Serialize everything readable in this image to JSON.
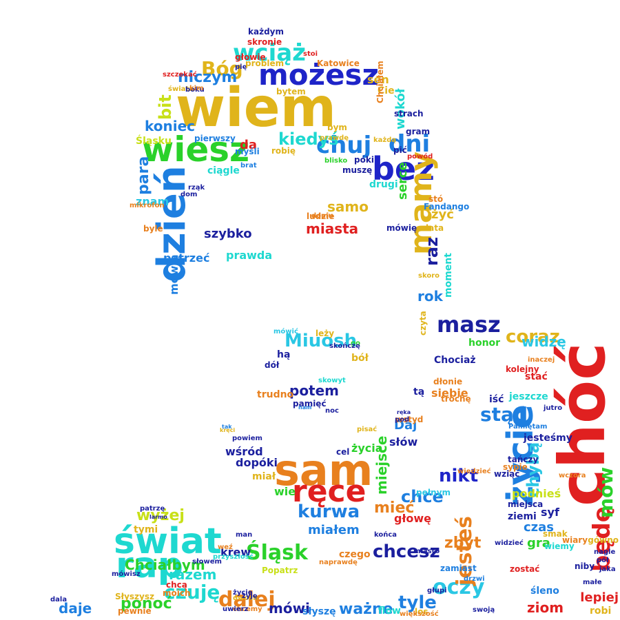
{
  "palette": {
    "gold": "#e0b41b",
    "blue": "#1e24c8",
    "navy": "#1b1f9e",
    "teal": "#1ed8d0",
    "cyan": "#2ac7e4",
    "green": "#2ad12a",
    "lime": "#c8e018",
    "orange": "#e8801e",
    "red": "#e02020",
    "azure": "#1e7fe0"
  },
  "words": [
    {
      "text": "wiem",
      "color": "gold"
    },
    {
      "text": "sam",
      "color": "orange"
    },
    {
      "text": "chóć",
      "color": "red"
    },
    {
      "text": "życie",
      "color": "azure"
    },
    {
      "text": "dzień",
      "color": "azure"
    },
    {
      "text": "wiesz",
      "color": "green"
    },
    {
      "text": "możesz",
      "color": "blue"
    },
    {
      "text": "bez",
      "color": "blue"
    },
    {
      "text": "świat",
      "color": "teal"
    },
    {
      "text": "rap",
      "color": "teal"
    },
    {
      "text": "ręce",
      "color": "red"
    },
    {
      "text": "wciąż",
      "color": "teal"
    },
    {
      "text": "dni",
      "color": "azure"
    },
    {
      "text": "chuj",
      "color": "azure"
    },
    {
      "text": "mamy",
      "color": "gold"
    },
    {
      "text": "masz",
      "color": "navy"
    },
    {
      "text": "oczy",
      "color": "cyan"
    },
    {
      "text": "jesteś",
      "color": "orange"
    },
    {
      "text": "chcesz",
      "color": "navy"
    },
    {
      "text": "kurwa",
      "color": "azure"
    },
    {
      "text": "nikt",
      "color": "blue"
    },
    {
      "text": "Miuosh",
      "color": "cyan"
    },
    {
      "text": "czuję",
      "color": "teal"
    },
    {
      "text": "Śląsk",
      "color": "green"
    },
    {
      "text": "Bóg",
      "color": "gold"
    },
    {
      "text": "dalej",
      "color": "orange"
    },
    {
      "text": "chce",
      "color": "azure"
    },
    {
      "text": "stąd",
      "color": "azure"
    },
    {
      "text": "coraz",
      "color": "gold"
    },
    {
      "text": "będę",
      "color": "red"
    },
    {
      "text": "mów",
      "color": "green"
    },
    {
      "text": "chybą",
      "color": "cyan"
    },
    {
      "text": "niczym",
      "color": "azure"
    },
    {
      "text": "koniec",
      "color": "azure"
    },
    {
      "text": "bit",
      "color": "lime"
    },
    {
      "text": "kiedyś",
      "color": "teal"
    },
    {
      "text": "miasta",
      "color": "red"
    },
    {
      "text": "raz",
      "color": "navy"
    },
    {
      "text": "tyle",
      "color": "azure"
    },
    {
      "text": "ważne",
      "color": "azure"
    },
    {
      "text": "mówi",
      "color": "navy"
    },
    {
      "text": "Chciałbym",
      "color": "green"
    },
    {
      "text": "razem",
      "color": "teal"
    },
    {
      "text": "wyżej",
      "color": "lime"
    },
    {
      "text": "ponoć",
      "color": "green"
    },
    {
      "text": "potem",
      "color": "navy"
    },
    {
      "text": "samo",
      "color": "gold"
    },
    {
      "text": "prawda",
      "color": "teal"
    },
    {
      "text": "szybko",
      "color": "navy"
    },
    {
      "text": "miejsce",
      "color": "green"
    },
    {
      "text": "mieć",
      "color": "orange"
    },
    {
      "text": "ziom",
      "color": "red"
    },
    {
      "text": "zbyt",
      "color": "orange"
    },
    {
      "text": "widzę",
      "color": "cyan"
    },
    {
      "text": "rok",
      "color": "azure"
    },
    {
      "text": "gra",
      "color": "green"
    },
    {
      "text": "lepiej",
      "color": "red"
    },
    {
      "text": "daje",
      "color": "azure"
    },
    {
      "text": "krew",
      "color": "navy"
    },
    {
      "text": "da",
      "color": "red"
    },
    {
      "text": "wokół",
      "color": "teal"
    },
    {
      "text": "serce",
      "color": "green"
    },
    {
      "text": "żyć",
      "color": "gold"
    },
    {
      "text": "para",
      "color": "azure"
    },
    {
      "text": "znam",
      "color": "cyan"
    },
    {
      "text": "patrzeć",
      "color": "azure"
    },
    {
      "text": "mówią",
      "color": "azure"
    },
    {
      "text": "Daj",
      "color": "azure"
    },
    {
      "text": "życia",
      "color": "green"
    },
    {
      "text": "słów",
      "color": "navy"
    },
    {
      "text": "moment",
      "color": "teal"
    },
    {
      "text": "Chociaż",
      "color": "navy"
    },
    {
      "text": "honor",
      "color": "green"
    },
    {
      "text": "wśród",
      "color": "navy"
    },
    {
      "text": "dopóki",
      "color": "navy"
    },
    {
      "text": "miał",
      "color": "gold"
    },
    {
      "text": "wie",
      "color": "green"
    },
    {
      "text": "miałem",
      "color": "azure"
    },
    {
      "text": "głowę",
      "color": "red"
    },
    {
      "text": "jeszcze",
      "color": "teal"
    },
    {
      "text": "pełnym",
      "color": "cyan"
    },
    {
      "text": "czas",
      "color": "azure"
    },
    {
      "text": "syf",
      "color": "navy"
    },
    {
      "text": "ziemi",
      "color": "navy"
    },
    {
      "text": "tymi",
      "color": "gold"
    },
    {
      "text": "podnieś",
      "color": "lime"
    },
    {
      "text": "wczora",
      "color": "orange"
    },
    {
      "text": "jesteśmy",
      "color": "navy"
    },
    {
      "text": "flow",
      "color": "teal"
    },
    {
      "text": "robi",
      "color": "gold"
    },
    {
      "text": "stać",
      "color": "red"
    },
    {
      "text": "siebie",
      "color": "orange"
    },
    {
      "text": "cel",
      "color": "navy"
    },
    {
      "text": "ciągle",
      "color": "teal"
    },
    {
      "text": "dom",
      "color": "navy"
    },
    {
      "text": "sen",
      "color": "gold"
    },
    {
      "text": "Cie",
      "color": "gold"
    },
    {
      "text": "pierwszy",
      "color": "azure"
    },
    {
      "text": "Śląsku",
      "color": "lime"
    },
    {
      "text": "kolejny",
      "color": "red"
    },
    {
      "text": "czego",
      "color": "orange"
    },
    {
      "text": "naprawdę",
      "color": "orange"
    },
    {
      "text": "trudno",
      "color": "orange"
    },
    {
      "text": "pamięć",
      "color": "navy"
    },
    {
      "text": "skowyt",
      "color": "teal"
    },
    {
      "text": "dół",
      "color": "navy"
    },
    {
      "text": "bół",
      "color": "gold"
    },
    {
      "text": "tą",
      "color": "navy"
    },
    {
      "text": "iść",
      "color": "navy"
    },
    {
      "text": "ludzie",
      "color": "orange"
    },
    {
      "text": "domu",
      "color": "orange"
    },
    {
      "text": "każdym",
      "color": "navy"
    },
    {
      "text": "pię",
      "color": "navy"
    },
    {
      "text": "głowie",
      "color": "red"
    },
    {
      "text": "problem",
      "color": "gold"
    },
    {
      "text": "Katowice",
      "color": "orange"
    },
    {
      "text": "bym",
      "color": "gold"
    },
    {
      "text": "pić",
      "color": "navy"
    },
    {
      "text": "póki",
      "color": "navy"
    },
    {
      "text": "muszę",
      "color": "navy"
    },
    {
      "text": "drugi",
      "color": "teal"
    },
    {
      "text": "mówię",
      "color": "navy"
    },
    {
      "text": "stó",
      "color": "orange"
    },
    {
      "text": "lata",
      "color": "gold"
    },
    {
      "text": "Słyszysz",
      "color": "gold"
    },
    {
      "text": "pewnie",
      "color": "orange"
    },
    {
      "text": "moich",
      "color": "orange"
    },
    {
      "text": "chcą",
      "color": "red"
    },
    {
      "text": "słyszę",
      "color": "azure"
    },
    {
      "text": "los",
      "color": "gold"
    },
    {
      "text": "swoją",
      "color": "navy"
    },
    {
      "text": "Pamiętam",
      "color": "azure"
    },
    {
      "text": "tańczy",
      "color": "navy"
    },
    {
      "text": "sypie",
      "color": "orange"
    },
    {
      "text": "śleпо",
      "color": "azure"
    },
    {
      "text": "miejsca",
      "color": "navy"
    },
    {
      "text": "wziąć",
      "color": "navy"
    },
    {
      "text": "trochę",
      "color": "orange"
    },
    {
      "text": "dłonie",
      "color": "orange"
    },
    {
      "text": "wstyd",
      "color": "orange"
    },
    {
      "text": "czyta",
      "color": "gold"
    },
    {
      "text": "pod",
      "color": "navy"
    },
    {
      "text": "ręka",
      "color": "navy"
    },
    {
      "text": "rząk",
      "color": "navy"
    },
    {
      "text": "mikrofon",
      "color": "orange"
    },
    {
      "text": "byle",
      "color": "orange"
    },
    {
      "text": "brat",
      "color": "azure"
    },
    {
      "text": "myśli",
      "color": "azure"
    },
    {
      "text": "robię",
      "color": "gold"
    },
    {
      "text": "blisko",
      "color": "green"
    },
    {
      "text": "prawdę",
      "color": "gold"
    },
    {
      "text": "każdą",
      "color": "gold"
    },
    {
      "text": "strach",
      "color": "navy"
    },
    {
      "text": "gram",
      "color": "navy"
    },
    {
      "text": "powód",
      "color": "red"
    },
    {
      "text": "Fandango",
      "color": "azure"
    },
    {
      "text": "skronie",
      "color": "red"
    },
    {
      "text": "stoi",
      "color": "red"
    },
    {
      "text": "bytem",
      "color": "gold"
    },
    {
      "text": "szczekać",
      "color": "red"
    },
    {
      "text": "świata",
      "color": "gold"
    },
    {
      "text": "boku",
      "color": "navy"
    },
    {
      "text": "kim",
      "color": "orange"
    },
    {
      "text": "Chciałem",
      "color": "orange"
    },
    {
      "text": "mówić",
      "color": "cyan"
    },
    {
      "text": "leży",
      "color": "gold"
    },
    {
      "text": "hą",
      "color": "navy"
    },
    {
      "text": "go",
      "color": "green"
    },
    {
      "text": "skoro",
      "color": "gold"
    },
    {
      "text": "smak",
      "color": "gold"
    },
    {
      "text": "wiary",
      "color": "orange"
    },
    {
      "text": "wiemy",
      "color": "teal"
    },
    {
      "text": "niby",
      "color": "navy"
    },
    {
      "text": "pół",
      "color": "navy"
    },
    {
      "text": "małe",
      "color": "navy"
    },
    {
      "text": "życie",
      "color": "navy"
    },
    {
      "text": "dwóch",
      "color": "gold"
    },
    {
      "text": "chcemy",
      "color": "orange"
    },
    {
      "text": "Popatrz",
      "color": "lime"
    },
    {
      "text": "większość",
      "color": "orange"
    },
    {
      "text": "dala",
      "color": "navy"
    },
    {
      "text": "końca",
      "color": "navy"
    },
    {
      "text": "miasto",
      "color": "navy"
    },
    {
      "text": "widzieć",
      "color": "navy"
    },
    {
      "text": "zostać",
      "color": "red"
    },
    {
      "text": "drzwi",
      "color": "azure"
    },
    {
      "text": "głupi",
      "color": "navy"
    },
    {
      "text": "zamiast",
      "color": "azure"
    },
    {
      "text": "gówno",
      "color": "gold"
    },
    {
      "text": "nagle",
      "color": "navy"
    },
    {
      "text": "jaka",
      "color": "navy"
    },
    {
      "text": "mówisz",
      "color": "navy"
    },
    {
      "text": "słowem",
      "color": "navy"
    },
    {
      "text": "tak",
      "color": "azure"
    },
    {
      "text": "powiem",
      "color": "navy"
    },
    {
      "text": "kręci",
      "color": "gold"
    },
    {
      "text": "pisać",
      "color": "gold"
    },
    {
      "text": "wiedzieć",
      "color": "orange"
    },
    {
      "text": "inaczej",
      "color": "orange"
    },
    {
      "text": "jutro",
      "color": "navy"
    },
    {
      "text": "skończę",
      "color": "navy"
    },
    {
      "text": "noc",
      "color": "navy"
    },
    {
      "text": "nam",
      "color": "azure"
    },
    {
      "text": "man",
      "color": "navy"
    },
    {
      "text": "weź",
      "color": "orange"
    },
    {
      "text": "żyję",
      "color": "navy"
    },
    {
      "text": "uwierz",
      "color": "navy"
    },
    {
      "text": "przyszłość",
      "color": "teal"
    },
    {
      "text": "larmo",
      "color": "navy"
    },
    {
      "text": "patrzę",
      "color": "navy"
    }
  ]
}
